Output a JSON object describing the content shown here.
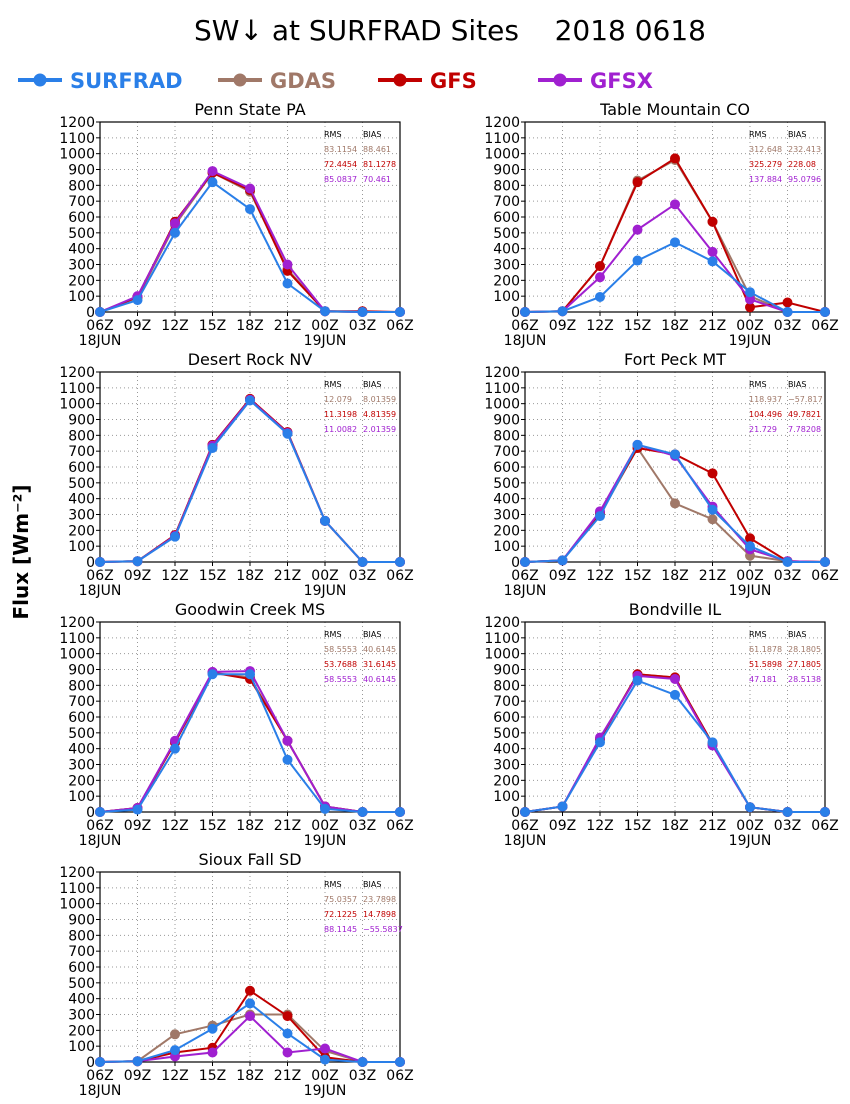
{
  "title": "SW↓ at SURFRAD Sites    2018 0618",
  "ylabel": "Flux [Wm⁻²]",
  "legend": [
    {
      "name": "SURFRAD",
      "color": "#2a7fe8"
    },
    {
      "name": "GDAS",
      "color": "#a07868"
    },
    {
      "name": "GFS",
      "color": "#c00000"
    },
    {
      "name": "GFSX",
      "color": "#a020d0"
    }
  ],
  "stats_header": {
    "rms": "RMS",
    "bias": "BIAS"
  },
  "chart_data": [
    {
      "type": "line",
      "title": "Penn State PA",
      "x": [
        "06Z",
        "09Z",
        "12Z",
        "15Z",
        "18Z",
        "21Z",
        "00Z",
        "03Z",
        "06Z"
      ],
      "date_labels": [
        "18JUN",
        "",
        "",
        "",
        "",
        "",
        "19JUN",
        "",
        ""
      ],
      "ylim": [
        0,
        1200
      ],
      "yticks": [
        0,
        100,
        200,
        300,
        400,
        500,
        600,
        700,
        800,
        900,
        1000,
        1100,
        1200
      ],
      "grid": true,
      "series": [
        {
          "name": "SURFRAD",
          "values": [
            0,
            75,
            500,
            820,
            650,
            180,
            5,
            0,
            0
          ]
        },
        {
          "name": "GDAS",
          "values": [
            0,
            90,
            550,
            880,
            760,
            270,
            5,
            0,
            0
          ]
        },
        {
          "name": "GFS",
          "values": [
            0,
            95,
            570,
            880,
            770,
            260,
            5,
            5,
            0
          ]
        },
        {
          "name": "GFSX",
          "values": [
            0,
            100,
            560,
            890,
            780,
            300,
            5,
            0,
            0
          ]
        }
      ],
      "stats": [
        {
          "rms": "83.1154",
          "bias": "88.461"
        },
        {
          "rms": "72.4454",
          "bias": "81.1278"
        },
        {
          "rms": "85.0837",
          "bias": "70.461"
        }
      ]
    },
    {
      "type": "line",
      "title": "Table Mountain CO",
      "x": [
        "06Z",
        "09Z",
        "12Z",
        "15Z",
        "18Z",
        "21Z",
        "00Z",
        "03Z",
        "06Z"
      ],
      "date_labels": [
        "18JUN",
        "",
        "",
        "",
        "",
        "",
        "19JUN",
        "",
        ""
      ],
      "ylim": [
        0,
        1200
      ],
      "yticks": [
        0,
        100,
        200,
        300,
        400,
        500,
        600,
        700,
        800,
        900,
        1000,
        1100,
        1200
      ],
      "grid": true,
      "series": [
        {
          "name": "SURFRAD",
          "values": [
            0,
            5,
            95,
            325,
            440,
            320,
            125,
            0,
            0
          ]
        },
        {
          "name": "GDAS",
          "values": [
            0,
            5,
            290,
            830,
            960,
            570,
            100,
            0,
            0
          ]
        },
        {
          "name": "GFS",
          "values": [
            0,
            5,
            290,
            820,
            970,
            570,
            30,
            60,
            0
          ]
        },
        {
          "name": "GFSX",
          "values": [
            0,
            5,
            220,
            520,
            680,
            380,
            80,
            0,
            0
          ]
        }
      ],
      "stats": [
        {
          "rms": "312.648",
          "bias": "232.413"
        },
        {
          "rms": "325.279",
          "bias": "228.08"
        },
        {
          "rms": "137.884",
          "bias": "95.0796"
        }
      ]
    },
    {
      "type": "line",
      "title": "Desert Rock NV",
      "x": [
        "06Z",
        "09Z",
        "12Z",
        "15Z",
        "18Z",
        "21Z",
        "00Z",
        "03Z",
        "06Z"
      ],
      "date_labels": [
        "18JUN",
        "",
        "",
        "",
        "",
        "",
        "19JUN",
        "",
        ""
      ],
      "ylim": [
        0,
        1200
      ],
      "yticks": [
        0,
        100,
        200,
        300,
        400,
        500,
        600,
        700,
        800,
        900,
        1000,
        1100,
        1200
      ],
      "grid": true,
      "series": [
        {
          "name": "SURFRAD",
          "values": [
            0,
            5,
            160,
            720,
            1020,
            810,
            260,
            0,
            0
          ]
        },
        {
          "name": "GDAS",
          "values": [
            0,
            5,
            170,
            740,
            1030,
            820,
            260,
            0,
            0
          ]
        },
        {
          "name": "GFS",
          "values": [
            0,
            5,
            170,
            740,
            1030,
            820,
            260,
            0,
            0
          ]
        },
        {
          "name": "GFSX",
          "values": [
            0,
            5,
            165,
            735,
            1025,
            815,
            260,
            0,
            0
          ]
        }
      ],
      "stats": [
        {
          "rms": "12.079",
          "bias": "8.01359"
        },
        {
          "rms": "11.3198",
          "bias": "4.81359"
        },
        {
          "rms": "11.0082",
          "bias": "2.01359"
        }
      ]
    },
    {
      "type": "line",
      "title": "Fort Peck MT",
      "x": [
        "06Z",
        "09Z",
        "12Z",
        "15Z",
        "18Z",
        "21Z",
        "00Z",
        "03Z",
        "06Z"
      ],
      "date_labels": [
        "18JUN",
        "",
        "",
        "",
        "",
        "",
        "19JUN",
        "",
        ""
      ],
      "ylim": [
        0,
        1200
      ],
      "yticks": [
        0,
        100,
        200,
        300,
        400,
        500,
        600,
        700,
        800,
        900,
        1000,
        1100,
        1200
      ],
      "grid": true,
      "series": [
        {
          "name": "SURFRAD",
          "values": [
            0,
            10,
            290,
            740,
            680,
            330,
            100,
            0,
            0
          ]
        },
        {
          "name": "GDAS",
          "values": [
            0,
            10,
            300,
            720,
            370,
            270,
            40,
            5,
            0
          ]
        },
        {
          "name": "GFS",
          "values": [
            0,
            10,
            310,
            720,
            680,
            560,
            150,
            5,
            0
          ]
        },
        {
          "name": "GFSX",
          "values": [
            0,
            10,
            320,
            740,
            670,
            350,
            80,
            5,
            0
          ]
        }
      ],
      "stats": [
        {
          "rms": "118.937",
          "bias": "−57.817"
        },
        {
          "rms": "104.496",
          "bias": "49.7821"
        },
        {
          "rms": "21.729",
          "bias": "7.78208"
        }
      ]
    },
    {
      "type": "line",
      "title": "Goodwin Creek MS",
      "x": [
        "06Z",
        "09Z",
        "12Z",
        "15Z",
        "18Z",
        "21Z",
        "00Z",
        "03Z",
        "06Z"
      ],
      "date_labels": [
        "18JUN",
        "",
        "",
        "",
        "",
        "",
        "19JUN",
        "",
        ""
      ],
      "ylim": [
        0,
        1200
      ],
      "yticks": [
        0,
        100,
        200,
        300,
        400,
        500,
        600,
        700,
        800,
        900,
        1000,
        1100,
        1200
      ],
      "grid": true,
      "series": [
        {
          "name": "SURFRAD",
          "values": [
            0,
            15,
            400,
            870,
            870,
            330,
            20,
            0,
            0
          ]
        },
        {
          "name": "GDAS",
          "values": [
            0,
            25,
            440,
            880,
            850,
            450,
            35,
            0,
            0
          ]
        },
        {
          "name": "GFS",
          "values": [
            0,
            25,
            440,
            880,
            840,
            450,
            35,
            0,
            0
          ]
        },
        {
          "name": "GFSX",
          "values": [
            0,
            25,
            450,
            885,
            890,
            450,
            35,
            0,
            0
          ]
        }
      ],
      "stats": [
        {
          "rms": "58.5553",
          "bias": "40.6145"
        },
        {
          "rms": "53.7688",
          "bias": "31.6145"
        },
        {
          "rms": "58.5553",
          "bias": "40.6145"
        }
      ]
    },
    {
      "type": "line",
      "title": "Bondville IL",
      "x": [
        "06Z",
        "09Z",
        "12Z",
        "15Z",
        "18Z",
        "21Z",
        "00Z",
        "03Z",
        "06Z"
      ],
      "date_labels": [
        "18JUN",
        "",
        "",
        "",
        "",
        "",
        "19JUN",
        "",
        ""
      ],
      "ylim": [
        0,
        1200
      ],
      "yticks": [
        0,
        100,
        200,
        300,
        400,
        500,
        600,
        700,
        800,
        900,
        1000,
        1100,
        1200
      ],
      "grid": true,
      "series": [
        {
          "name": "SURFRAD",
          "values": [
            0,
            35,
            440,
            830,
            740,
            440,
            30,
            0,
            0
          ]
        },
        {
          "name": "GDAS",
          "values": [
            0,
            35,
            460,
            870,
            850,
            430,
            30,
            0,
            0
          ]
        },
        {
          "name": "GFS",
          "values": [
            0,
            35,
            460,
            870,
            850,
            430,
            30,
            0,
            0
          ]
        },
        {
          "name": "GFSX",
          "values": [
            0,
            35,
            470,
            860,
            840,
            420,
            30,
            0,
            0
          ]
        }
      ],
      "stats": [
        {
          "rms": "61.1878",
          "bias": "28.1805"
        },
        {
          "rms": "51.5898",
          "bias": "27.1805"
        },
        {
          "rms": "47.181",
          "bias": "28.5138"
        }
      ]
    },
    {
      "type": "line",
      "title": "Sioux Fall SD",
      "x": [
        "06Z",
        "09Z",
        "12Z",
        "15Z",
        "18Z",
        "21Z",
        "00Z",
        "03Z",
        "06Z"
      ],
      "date_labels": [
        "18JUN",
        "",
        "",
        "",
        "",
        "",
        "19JUN",
        "",
        ""
      ],
      "ylim": [
        0,
        1200
      ],
      "yticks": [
        0,
        100,
        200,
        300,
        400,
        500,
        600,
        700,
        800,
        900,
        1000,
        1100,
        1200
      ],
      "grid": true,
      "series": [
        {
          "name": "SURFRAD",
          "values": [
            0,
            5,
            75,
            210,
            370,
            180,
            15,
            0,
            0
          ]
        },
        {
          "name": "GDAS",
          "values": [
            0,
            5,
            175,
            230,
            300,
            300,
            70,
            0,
            0
          ]
        },
        {
          "name": "GFS",
          "values": [
            0,
            5,
            60,
            90,
            450,
            290,
            30,
            0,
            0
          ]
        },
        {
          "name": "GFSX",
          "values": [
            0,
            5,
            35,
            60,
            290,
            60,
            85,
            0,
            0
          ]
        }
      ],
      "stats": [
        {
          "rms": "75.0357",
          "bias": "23.7898"
        },
        {
          "rms": "72.1225",
          "bias": "14.7898"
        },
        {
          "rms": "88.1145",
          "bias": "−55.5837"
        }
      ]
    }
  ]
}
